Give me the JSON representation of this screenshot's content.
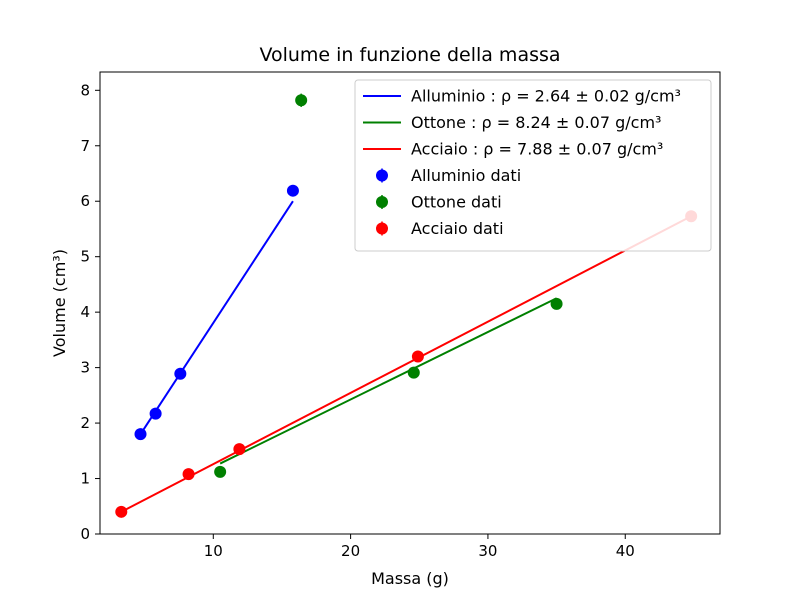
{
  "chart_data": {
    "type": "scatter",
    "title": "Volume in funzione della massa",
    "xlabel": "Massa (g)",
    "ylabel": "Volume (cm³)",
    "xlim": [
      1.75,
      46.9
    ],
    "ylim": [
      0,
      8.33
    ],
    "xticks": [
      10,
      20,
      30,
      40
    ],
    "yticks": [
      0,
      1,
      2,
      3,
      4,
      5,
      6,
      7,
      8
    ],
    "grid": false,
    "legend_position": "top-right",
    "series": [
      {
        "name": "Alluminio dati",
        "color": "#0000ff",
        "points": [
          {
            "x": 4.7,
            "y": 1.8,
            "err": 0.05
          },
          {
            "x": 5.8,
            "y": 2.17,
            "err": 0.05
          },
          {
            "x": 7.6,
            "y": 2.89,
            "err": 0.05
          },
          {
            "x": 15.8,
            "y": 6.19,
            "err": 0.05
          }
        ],
        "fit": {
          "label": "Alluminio : ρ = 2.64 ± 0.02 g/cm³",
          "x": [
            4.7,
            15.8
          ],
          "y": [
            1.8,
            6.0
          ]
        }
      },
      {
        "name": "Ottone dati",
        "color": "#008000",
        "points": [
          {
            "x": 10.5,
            "y": 1.12,
            "err": 0.05
          },
          {
            "x": 24.6,
            "y": 2.91,
            "err": 0.05
          },
          {
            "x": 35.0,
            "y": 4.15,
            "err": 0.05
          },
          {
            "x": 16.4,
            "y": 7.82,
            "err": 0.12
          }
        ],
        "fit": {
          "label": "Ottone : ρ = 8.24 ± 0.07 g/cm³",
          "x": [
            10.5,
            35.0
          ],
          "y": [
            1.27,
            4.25
          ]
        }
      },
      {
        "name": "Acciaio dati",
        "color": "#ff0000",
        "points": [
          {
            "x": 3.3,
            "y": 0.4,
            "err": 0.05
          },
          {
            "x": 8.2,
            "y": 1.08,
            "err": 0.05
          },
          {
            "x": 11.9,
            "y": 1.53,
            "err": 0.05
          },
          {
            "x": 24.9,
            "y": 3.2,
            "err": 0.05
          },
          {
            "x": 44.8,
            "y": 5.73,
            "err": 0.05
          }
        ],
        "fit": {
          "label": "Acciaio : ρ = 7.88 ± 0.07 g/cm³",
          "x": [
            3.3,
            44.8
          ],
          "y": [
            0.4,
            5.73
          ]
        }
      }
    ]
  }
}
